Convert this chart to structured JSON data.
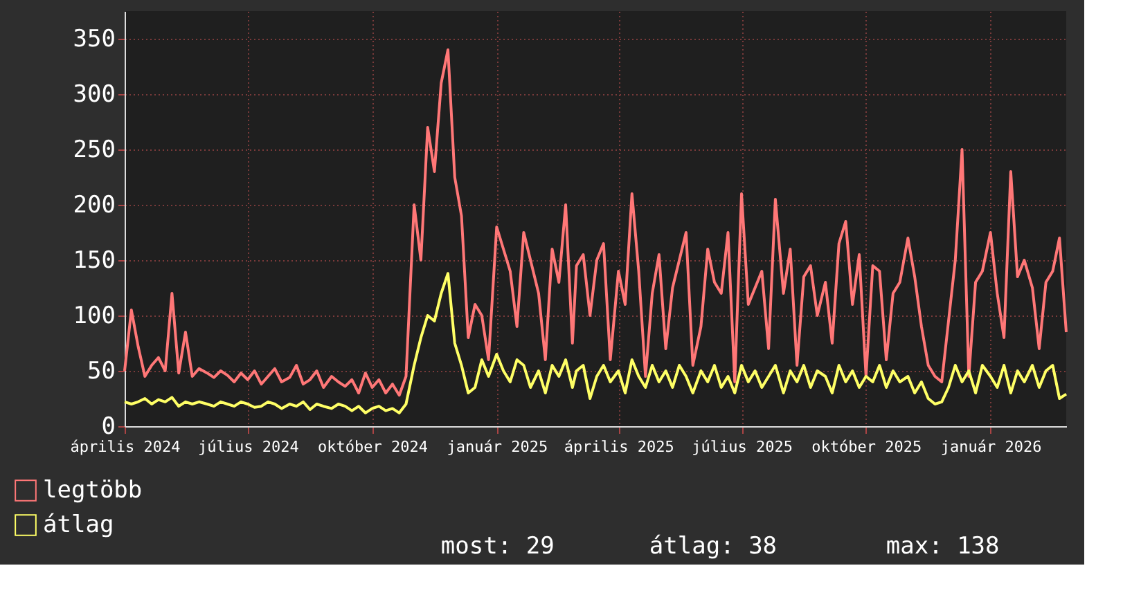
{
  "chart_data": {
    "type": "line",
    "xlim": [
      "2024-04-01",
      "2026-02-26"
    ],
    "x": [
      "2024-04-01",
      "2024-04-06",
      "2024-04-11",
      "2024-04-16",
      "2024-04-21",
      "2024-04-26",
      "2024-05-01",
      "2024-05-06",
      "2024-05-11",
      "2024-05-16",
      "2024-05-21",
      "2024-05-26",
      "2024-06-01",
      "2024-06-06",
      "2024-06-11",
      "2024-06-16",
      "2024-06-21",
      "2024-06-26",
      "2024-07-01",
      "2024-07-06",
      "2024-07-11",
      "2024-07-16",
      "2024-07-21",
      "2024-07-26",
      "2024-08-01",
      "2024-08-06",
      "2024-08-11",
      "2024-08-16",
      "2024-08-21",
      "2024-08-26",
      "2024-09-01",
      "2024-09-06",
      "2024-09-11",
      "2024-09-16",
      "2024-09-21",
      "2024-09-26",
      "2024-10-01",
      "2024-10-06",
      "2024-10-11",
      "2024-10-16",
      "2024-10-21",
      "2024-10-26",
      "2024-11-01",
      "2024-11-06",
      "2024-11-11",
      "2024-11-16",
      "2024-11-21",
      "2024-11-26",
      "2024-12-01",
      "2024-12-06",
      "2024-12-11",
      "2024-12-16",
      "2024-12-21",
      "2024-12-26",
      "2025-01-01",
      "2025-01-06",
      "2025-01-11",
      "2025-01-16",
      "2025-01-21",
      "2025-01-26",
      "2025-02-01",
      "2025-02-06",
      "2025-02-11",
      "2025-02-16",
      "2025-02-21",
      "2025-02-26",
      "2025-03-01",
      "2025-03-06",
      "2025-03-11",
      "2025-03-16",
      "2025-03-21",
      "2025-03-26",
      "2025-04-01",
      "2025-04-06",
      "2025-04-11",
      "2025-04-16",
      "2025-04-21",
      "2025-04-26",
      "2025-05-01",
      "2025-05-06",
      "2025-05-11",
      "2025-05-16",
      "2025-05-21",
      "2025-05-26",
      "2025-06-01",
      "2025-06-06",
      "2025-06-11",
      "2025-06-16",
      "2025-06-21",
      "2025-06-26",
      "2025-07-01",
      "2025-07-06",
      "2025-07-11",
      "2025-07-16",
      "2025-07-21",
      "2025-07-26",
      "2025-08-01",
      "2025-08-06",
      "2025-08-11",
      "2025-08-16",
      "2025-08-21",
      "2025-08-26",
      "2025-09-01",
      "2025-09-06",
      "2025-09-11",
      "2025-09-16",
      "2025-09-21",
      "2025-09-26",
      "2025-10-01",
      "2025-10-06",
      "2025-10-11",
      "2025-10-16",
      "2025-10-21",
      "2025-10-26",
      "2025-11-01",
      "2025-11-06",
      "2025-11-11",
      "2025-11-16",
      "2025-11-21",
      "2025-11-26",
      "2025-12-01",
      "2025-12-06",
      "2025-12-11",
      "2025-12-16",
      "2025-12-21",
      "2025-12-26",
      "2026-01-01",
      "2026-01-06",
      "2026-01-11",
      "2026-01-16",
      "2026-01-21",
      "2026-01-26",
      "2026-02-01",
      "2026-02-06",
      "2026-02-11",
      "2026-02-16",
      "2026-02-21",
      "2026-02-26"
    ],
    "xticks": [
      {
        "value": "2024-04-01",
        "label": "április 2024"
      },
      {
        "value": "2024-07-01",
        "label": "július 2024"
      },
      {
        "value": "2024-10-01",
        "label": "október 2024"
      },
      {
        "value": "2025-01-01",
        "label": "január 2025"
      },
      {
        "value": "2025-04-01",
        "label": "április 2025"
      },
      {
        "value": "2025-07-01",
        "label": "július 2025"
      },
      {
        "value": "2025-10-01",
        "label": "október 2025"
      },
      {
        "value": "2026-01-01",
        "label": "január 2026"
      }
    ],
    "ylim": [
      0,
      375
    ],
    "yticks": [
      0,
      50,
      100,
      150,
      200,
      250,
      300,
      350
    ],
    "grid": true,
    "legend": "bottom",
    "marker": "none",
    "line_style": "solid",
    "annotations": [
      "most: 29",
      "átlag: 38",
      "max: 138"
    ],
    "series": [
      {
        "name": "legtöbb",
        "color": "#ff7777",
        "values": [
          50,
          105,
          72,
          45,
          55,
          62,
          50,
          120,
          48,
          85,
          45,
          52,
          48,
          44,
          50,
          46,
          40,
          48,
          42,
          50,
          38,
          45,
          52,
          40,
          44,
          55,
          38,
          42,
          50,
          35,
          45,
          40,
          36,
          42,
          30,
          48,
          35,
          42,
          30,
          38,
          28,
          45,
          200,
          150,
          270,
          230,
          310,
          340,
          225,
          190,
          80,
          110,
          100,
          60,
          180,
          160,
          140,
          90,
          175,
          150,
          120,
          60,
          160,
          130,
          200,
          75,
          145,
          155,
          100,
          150,
          165,
          60,
          140,
          110,
          210,
          140,
          45,
          120,
          155,
          70,
          125,
          150,
          175,
          55,
          90,
          160,
          130,
          120,
          175,
          40,
          210,
          110,
          125,
          140,
          70,
          205,
          120,
          160,
          55,
          135,
          145,
          100,
          130,
          75,
          165,
          185,
          110,
          155,
          45,
          145,
          140,
          60,
          120,
          130,
          170,
          135,
          90,
          55,
          45,
          40,
          95,
          150,
          250,
          45,
          130,
          140,
          175,
          120,
          80,
          230,
          135,
          150,
          125,
          70,
          130,
          140,
          170,
          85
        ]
      },
      {
        "name": "átlag",
        "color": "#ffff66",
        "values": [
          22,
          20,
          22,
          25,
          20,
          24,
          22,
          26,
          18,
          22,
          20,
          22,
          20,
          18,
          22,
          20,
          18,
          22,
          20,
          17,
          18,
          22,
          20,
          16,
          20,
          18,
          22,
          15,
          20,
          18,
          16,
          20,
          18,
          14,
          18,
          12,
          16,
          18,
          14,
          16,
          12,
          20,
          55,
          80,
          100,
          95,
          120,
          138,
          75,
          55,
          30,
          35,
          60,
          45,
          65,
          50,
          40,
          60,
          55,
          35,
          50,
          30,
          55,
          45,
          60,
          35,
          50,
          55,
          25,
          45,
          55,
          40,
          50,
          30,
          60,
          45,
          35,
          55,
          40,
          50,
          35,
          55,
          45,
          30,
          50,
          40,
          55,
          35,
          45,
          30,
          55,
          40,
          50,
          35,
          45,
          55,
          30,
          50,
          40,
          55,
          35,
          50,
          45,
          30,
          55,
          40,
          50,
          35,
          45,
          40,
          55,
          35,
          50,
          40,
          45,
          30,
          40,
          25,
          20,
          22,
          35,
          55,
          40,
          50,
          30,
          55,
          45,
          35,
          55,
          30,
          50,
          40,
          55,
          35,
          50,
          55,
          25,
          29
        ]
      }
    ]
  }
}
